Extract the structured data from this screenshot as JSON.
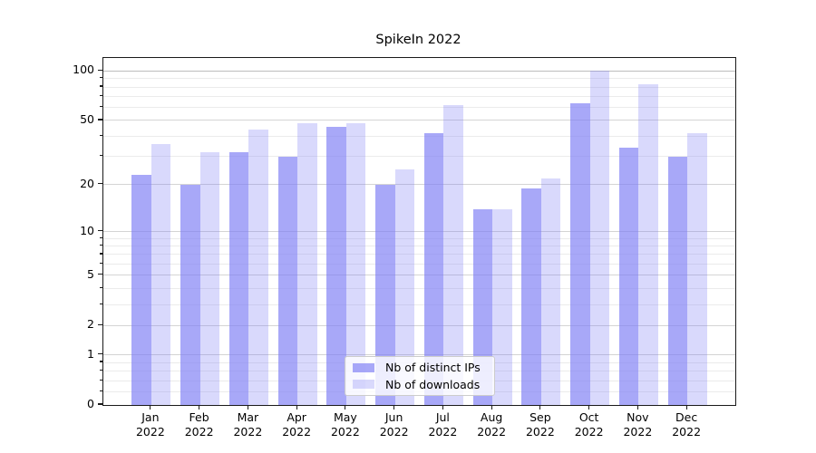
{
  "chart_data": {
    "type": "bar",
    "title": "SpikeIn 2022",
    "categories": [
      "Jan",
      "Feb",
      "Mar",
      "Apr",
      "May",
      "Jun",
      "Jul",
      "Aug",
      "Sep",
      "Oct",
      "Nov",
      "Dec"
    ],
    "x_year": "2022",
    "series": [
      {
        "name": "Nb of distinct IPs",
        "color": "rgba(125,125,245,0.67)",
        "values": [
          23,
          20,
          32,
          30,
          46,
          20,
          42,
          14,
          19,
          64,
          34,
          30
        ]
      },
      {
        "name": "Nb of downloads",
        "color": "rgba(125,125,245,0.29)",
        "values": [
          36,
          32,
          44,
          48,
          48,
          25,
          62,
          14,
          22,
          100,
          83,
          42
        ]
      }
    ],
    "yscale": "log1p",
    "ylim": [
      0,
      120
    ],
    "y_major_ticks": [
      0,
      1,
      2,
      5,
      10,
      20,
      50,
      100
    ],
    "y_minor_ticks": [
      0.2,
      0.4,
      0.6,
      0.8,
      3,
      4,
      6,
      7,
      8,
      9,
      30,
      40,
      60,
      70,
      80,
      90
    ],
    "grid": true,
    "legend_position": "lower center"
  },
  "colors": {
    "grid_major": "#d4d4d4",
    "grid_minor": "#ebebeb",
    "grid_emphasis": "#bdbdbd",
    "spine": "#1a1a1a",
    "text": "#000000",
    "legend_border": "#cccccc",
    "legend_bg": "rgba(255,255,255,0.8)"
  }
}
